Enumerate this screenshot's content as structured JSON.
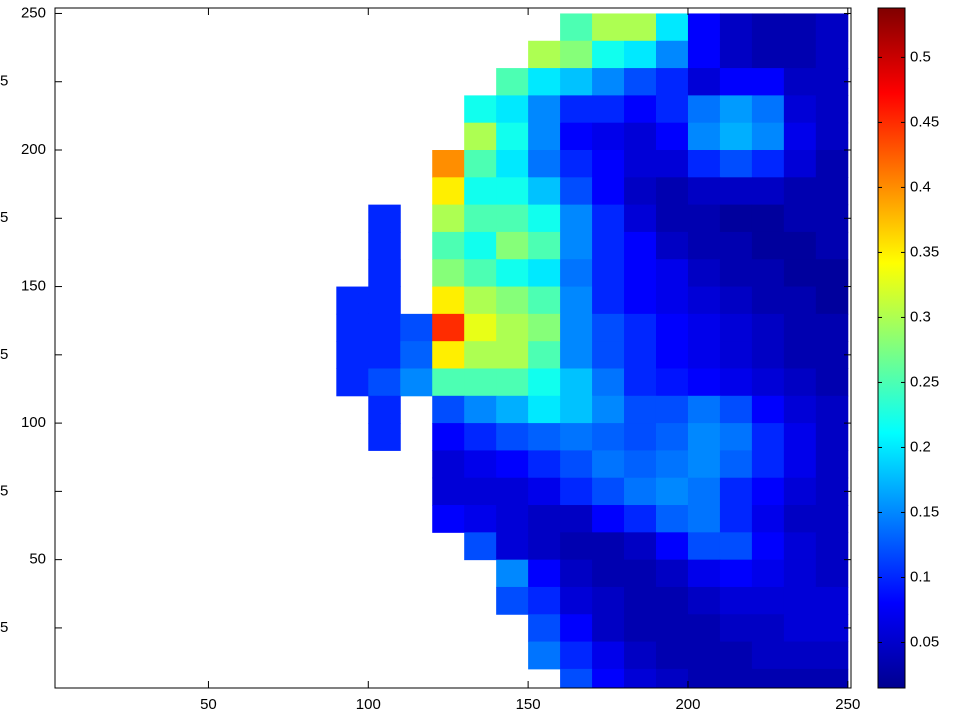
{
  "chart_data": {
    "type": "heatmap",
    "colormap": "jet",
    "x": [
      5,
      15,
      25,
      35,
      45,
      55,
      65,
      75,
      85,
      95,
      105,
      115,
      125,
      135,
      145,
      155,
      165,
      175,
      185,
      195,
      205,
      215,
      225,
      235,
      245
    ],
    "y": [
      245,
      235,
      225,
      215,
      205,
      195,
      185,
      175,
      165,
      155,
      145,
      135,
      125,
      115,
      105,
      95,
      85,
      75,
      65,
      55,
      45,
      35,
      25,
      15,
      5
    ],
    "z": [
      [
        null,
        null,
        null,
        null,
        null,
        null,
        null,
        null,
        null,
        null,
        null,
        null,
        null,
        null,
        null,
        null,
        0.25,
        0.3,
        0.3,
        0.2,
        0.08,
        0.05,
        0.04,
        0.04,
        0.05
      ],
      [
        null,
        null,
        null,
        null,
        null,
        null,
        null,
        null,
        null,
        null,
        null,
        null,
        null,
        null,
        null,
        0.3,
        0.28,
        0.22,
        0.2,
        0.15,
        0.08,
        0.05,
        0.04,
        0.04,
        0.05
      ],
      [
        null,
        null,
        null,
        null,
        null,
        null,
        null,
        null,
        null,
        null,
        null,
        null,
        null,
        null,
        0.25,
        0.2,
        0.18,
        0.15,
        0.12,
        0.1,
        0.06,
        0.08,
        0.08,
        0.05,
        0.05
      ],
      [
        null,
        null,
        null,
        null,
        null,
        null,
        null,
        null,
        null,
        null,
        null,
        null,
        null,
        0.22,
        0.2,
        0.15,
        0.1,
        0.1,
        0.08,
        0.1,
        0.14,
        0.16,
        0.14,
        0.06,
        0.05
      ],
      [
        null,
        null,
        null,
        null,
        null,
        null,
        null,
        null,
        null,
        null,
        null,
        null,
        null,
        0.3,
        0.22,
        0.15,
        0.08,
        0.07,
        0.06,
        0.08,
        0.15,
        0.17,
        0.15,
        0.07,
        0.05
      ],
      [
        null,
        null,
        null,
        null,
        null,
        null,
        null,
        null,
        null,
        null,
        null,
        null,
        0.4,
        0.25,
        0.2,
        0.14,
        0.1,
        0.08,
        0.06,
        0.06,
        0.1,
        0.12,
        0.1,
        0.06,
        0.04
      ],
      [
        null,
        null,
        null,
        null,
        null,
        null,
        null,
        null,
        null,
        null,
        null,
        null,
        0.35,
        0.22,
        0.22,
        0.18,
        0.12,
        0.08,
        0.05,
        0.04,
        0.05,
        0.05,
        0.05,
        0.04,
        0.04
      ],
      [
        null,
        null,
        null,
        null,
        null,
        null,
        null,
        null,
        null,
        null,
        0.1,
        null,
        0.3,
        0.25,
        0.25,
        0.22,
        0.15,
        0.1,
        0.06,
        0.04,
        0.04,
        0.03,
        0.03,
        0.04,
        0.04
      ],
      [
        null,
        null,
        null,
        null,
        null,
        null,
        null,
        null,
        null,
        null,
        0.1,
        null,
        0.25,
        0.22,
        0.28,
        0.25,
        0.15,
        0.1,
        0.08,
        0.05,
        0.04,
        0.04,
        0.03,
        0.03,
        0.04
      ],
      [
        null,
        null,
        null,
        null,
        null,
        null,
        null,
        null,
        null,
        null,
        0.1,
        null,
        0.28,
        0.25,
        0.22,
        0.2,
        0.14,
        0.1,
        0.08,
        0.07,
        0.05,
        0.04,
        0.04,
        0.03,
        0.03
      ],
      [
        null,
        null,
        null,
        null,
        null,
        null,
        null,
        null,
        null,
        0.1,
        0.1,
        null,
        0.35,
        0.3,
        0.28,
        0.25,
        0.15,
        0.1,
        0.08,
        0.07,
        0.06,
        0.05,
        0.04,
        0.04,
        0.03
      ],
      [
        null,
        null,
        null,
        null,
        null,
        null,
        null,
        null,
        null,
        0.1,
        0.1,
        0.12,
        0.45,
        0.33,
        0.3,
        0.28,
        0.15,
        0.12,
        0.1,
        0.08,
        0.07,
        0.06,
        0.05,
        0.04,
        0.04
      ],
      [
        null,
        null,
        null,
        null,
        null,
        null,
        null,
        null,
        null,
        0.1,
        0.1,
        0.13,
        0.35,
        0.3,
        0.3,
        0.25,
        0.15,
        0.12,
        0.1,
        0.08,
        0.07,
        0.06,
        0.05,
        0.04,
        0.04
      ],
      [
        null,
        null,
        null,
        null,
        null,
        null,
        null,
        null,
        null,
        0.1,
        0.12,
        0.15,
        0.25,
        0.25,
        0.25,
        0.22,
        0.18,
        0.14,
        0.1,
        0.09,
        0.08,
        0.07,
        0.06,
        0.05,
        0.04
      ],
      [
        null,
        null,
        null,
        null,
        null,
        null,
        null,
        null,
        null,
        null,
        0.1,
        null,
        0.12,
        0.15,
        0.17,
        0.2,
        0.18,
        0.15,
        0.12,
        0.12,
        0.14,
        0.12,
        0.08,
        0.06,
        0.05
      ],
      [
        null,
        null,
        null,
        null,
        null,
        null,
        null,
        null,
        null,
        null,
        0.1,
        null,
        0.08,
        0.1,
        0.12,
        0.13,
        0.14,
        0.13,
        0.12,
        0.13,
        0.15,
        0.14,
        0.1,
        0.07,
        0.05
      ],
      [
        null,
        null,
        null,
        null,
        null,
        null,
        null,
        null,
        null,
        null,
        null,
        null,
        0.06,
        0.07,
        0.08,
        0.1,
        0.12,
        0.14,
        0.13,
        0.14,
        0.15,
        0.13,
        0.1,
        0.07,
        0.05
      ],
      [
        null,
        null,
        null,
        null,
        null,
        null,
        null,
        null,
        null,
        null,
        null,
        null,
        0.06,
        0.06,
        0.06,
        0.07,
        0.1,
        0.12,
        0.14,
        0.15,
        0.14,
        0.1,
        0.08,
        0.06,
        0.05
      ],
      [
        null,
        null,
        null,
        null,
        null,
        null,
        null,
        null,
        null,
        null,
        null,
        null,
        0.08,
        0.07,
        0.06,
        0.05,
        0.05,
        0.08,
        0.1,
        0.13,
        0.14,
        0.1,
        0.07,
        0.05,
        0.05
      ],
      [
        null,
        null,
        null,
        null,
        null,
        null,
        null,
        null,
        null,
        null,
        null,
        null,
        null,
        0.12,
        0.06,
        0.05,
        0.04,
        0.04,
        0.05,
        0.08,
        0.12,
        0.12,
        0.08,
        0.06,
        0.05
      ],
      [
        null,
        null,
        null,
        null,
        null,
        null,
        null,
        null,
        null,
        null,
        null,
        null,
        null,
        null,
        0.15,
        0.08,
        0.05,
        0.04,
        0.04,
        0.05,
        0.07,
        0.08,
        0.07,
        0.06,
        0.05
      ],
      [
        null,
        null,
        null,
        null,
        null,
        null,
        null,
        null,
        null,
        null,
        null,
        null,
        null,
        null,
        0.12,
        0.1,
        0.06,
        0.05,
        0.04,
        0.04,
        0.05,
        0.06,
        0.06,
        0.06,
        0.06
      ],
      [
        null,
        null,
        null,
        null,
        null,
        null,
        null,
        null,
        null,
        null,
        null,
        null,
        null,
        null,
        null,
        0.12,
        0.08,
        0.05,
        0.04,
        0.04,
        0.04,
        0.05,
        0.05,
        0.06,
        0.06
      ],
      [
        null,
        null,
        null,
        null,
        null,
        null,
        null,
        null,
        null,
        null,
        null,
        null,
        null,
        null,
        null,
        0.14,
        0.1,
        0.07,
        0.05,
        0.04,
        0.04,
        0.04,
        0.05,
        0.05,
        0.05
      ],
      [
        null,
        null,
        null,
        null,
        null,
        null,
        null,
        null,
        null,
        null,
        null,
        null,
        null,
        null,
        null,
        null,
        0.12,
        0.08,
        0.06,
        0.05,
        0.04,
        0.04,
        0.04,
        0.04,
        0.04
      ]
    ],
    "xlim": [
      2,
      251
    ],
    "ylim": [
      3,
      252
    ],
    "xticks": [
      50,
      100,
      150,
      200,
      250
    ],
    "yticks": [
      {
        "value": 25,
        "label": "5"
      },
      50,
      {
        "value": 75,
        "label": "5"
      },
      100,
      {
        "value": 125,
        "label": "5"
      },
      150,
      {
        "value": 175,
        "label": "5"
      },
      200,
      {
        "value": 225,
        "label": "5"
      },
      250
    ],
    "clim": [
      0.015,
      0.538
    ],
    "cticks": [
      0.05,
      0.1,
      0.15,
      0.2,
      0.25,
      0.3,
      0.35,
      0.4,
      0.45,
      0.5
    ]
  }
}
